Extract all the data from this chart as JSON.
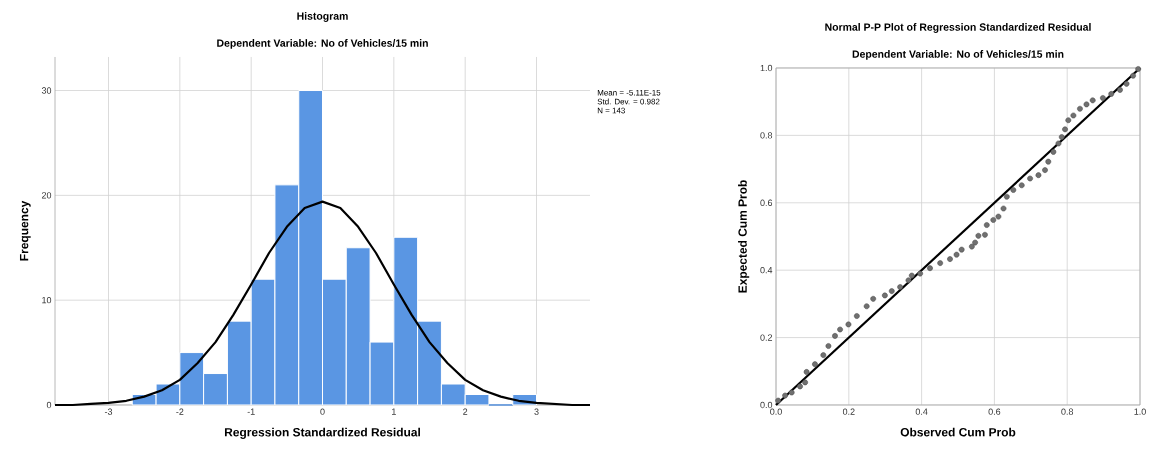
{
  "chart_data": [
    {
      "type": "histogram",
      "title": "Histogram",
      "subtitle": "Dependent Variable: No of Vehicles/15 min",
      "xlabel": "Regression Standardized Residual",
      "ylabel": "Frequency",
      "series": [
        {
          "color": "#5a96e3",
          "bins": [
            -2.667,
            -2.333,
            -2,
            -1.667,
            -1.333,
            -1,
            -0.667,
            -0.333,
            0,
            0.333,
            0.667,
            1,
            1.333,
            1.667,
            2,
            2.333,
            2.667,
            3
          ],
          "values": [
            1,
            2,
            5,
            3,
            8,
            12,
            21,
            30,
            12,
            15,
            6,
            16,
            8,
            2,
            1,
            0,
            1
          ]
        },
        {
          "type": "line",
          "color": "#000000",
          "x": [
            -3.75,
            -3.5,
            -3.25,
            -3,
            -2.75,
            -2.5,
            -2.25,
            -2,
            -1.75,
            -1.5,
            -1.25,
            -1,
            -0.75,
            -0.5,
            -0.25,
            0,
            0.25,
            0.5,
            0.75,
            1,
            1.25,
            1.5,
            1.75,
            2,
            2.25,
            2.5,
            2.75,
            3,
            3.25,
            3.5,
            3.75
          ],
          "values": [
            0,
            0,
            0.1,
            0.2,
            0.4,
            0.8,
            1.4,
            2.4,
            4,
            6,
            8.6,
            11.5,
            14.5,
            17,
            18.8,
            19.4,
            18.8,
            17,
            14.5,
            11.5,
            8.6,
            6,
            4,
            2.4,
            1.4,
            0.8,
            0.4,
            0.2,
            0.1,
            0,
            0
          ]
        }
      ],
      "annotations": [
        "Mean = -5.11E-15",
        "Std. Dev. = 0.982",
        "N = 143"
      ],
      "xlim": [
        -3.75,
        3.75
      ],
      "ylim": [
        0,
        33.2
      ],
      "xticks": [
        -3,
        -2,
        -1,
        0,
        1,
        2,
        3
      ],
      "yticks": [
        0,
        10,
        20,
        30
      ],
      "grid": true
    },
    {
      "type": "scatter",
      "title": "Normal P-P Plot of Regression Standardized Residual",
      "subtitle": "Dependent Variable: No of Vehicles/15 min",
      "xlabel": "Observed Cum Prob",
      "ylabel": "Expected Cum Prob",
      "series": [
        {
          "color": "#707070",
          "x": [
            0.006,
            0.025,
            0.043,
            0.066,
            0.08,
            0.084,
            0.107,
            0.13,
            0.144,
            0.162,
            0.176,
            0.199,
            0.222,
            0.249,
            0.267,
            0.299,
            0.318,
            0.341,
            0.364,
            0.373,
            0.396,
            0.423,
            0.451,
            0.478,
            0.496,
            0.51,
            0.538,
            0.547,
            0.556,
            0.574,
            0.579,
            0.597,
            0.611,
            0.625,
            0.634,
            0.652,
            0.675,
            0.698,
            0.721,
            0.739,
            0.748,
            0.762,
            0.776,
            0.785,
            0.794,
            0.803,
            0.817,
            0.835,
            0.853,
            0.87,
            0.898,
            0.921,
            0.945,
            0.963,
            0.981,
            0.995
          ],
          "values": [
            0.013,
            0.028,
            0.037,
            0.055,
            0.067,
            0.098,
            0.121,
            0.148,
            0.175,
            0.205,
            0.224,
            0.239,
            0.264,
            0.293,
            0.315,
            0.325,
            0.338,
            0.35,
            0.37,
            0.384,
            0.39,
            0.406,
            0.421,
            0.433,
            0.446,
            0.461,
            0.47,
            0.482,
            0.502,
            0.505,
            0.534,
            0.549,
            0.559,
            0.583,
            0.618,
            0.638,
            0.652,
            0.672,
            0.682,
            0.697,
            0.722,
            0.751,
            0.776,
            0.795,
            0.818,
            0.845,
            0.859,
            0.879,
            0.892,
            0.904,
            0.911,
            0.923,
            0.935,
            0.953,
            0.977,
            0.997
          ]
        },
        {
          "type": "line",
          "marker": "none",
          "color": "#000000",
          "x": [
            0,
            1
          ],
          "values": [
            0,
            1
          ]
        }
      ],
      "xlim": [
        0,
        1
      ],
      "ylim": [
        0,
        1
      ],
      "xticks": [
        {
          "value": 0,
          "label": "0.0"
        },
        {
          "value": 0.2,
          "label": "0.2"
        },
        {
          "value": 0.4,
          "label": "0.4"
        },
        {
          "value": 0.6,
          "label": "0.6"
        },
        {
          "value": 0.8,
          "label": "0.8"
        },
        {
          "value": 1,
          "label": "1.0"
        }
      ],
      "yticks": [
        {
          "value": 0,
          "label": "0.0"
        },
        {
          "value": 0.2,
          "label": "0.2"
        },
        {
          "value": 0.4,
          "label": "0.4"
        },
        {
          "value": 0.6,
          "label": "0.6"
        },
        {
          "value": 0.8,
          "label": "0.8"
        },
        {
          "value": 1,
          "label": "1.0"
        }
      ],
      "marker": "circle",
      "grid": true
    }
  ]
}
